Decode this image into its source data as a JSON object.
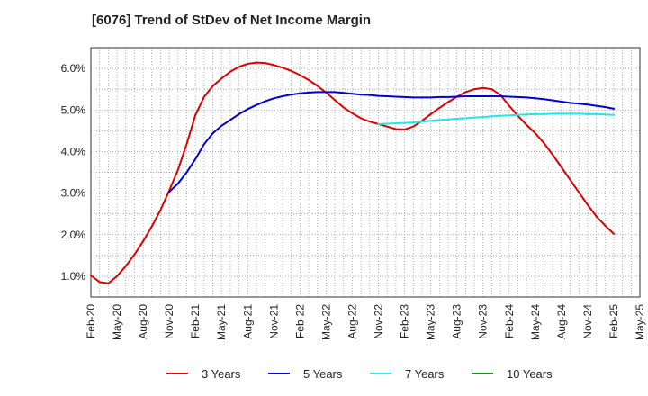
{
  "title": "[6076]  Trend of StDev of Net Income Margin",
  "chart_data": {
    "type": "line",
    "title": "[6076]  Trend of StDev of Net Income Margin",
    "xlabel": "",
    "ylabel": "",
    "x_ticks": [
      "Feb-20",
      "May-20",
      "Aug-20",
      "Nov-20",
      "Feb-21",
      "May-21",
      "Aug-21",
      "Nov-21",
      "Feb-22",
      "May-22",
      "Aug-22",
      "Nov-22",
      "Feb-23",
      "May-23",
      "Aug-23",
      "Nov-23",
      "Feb-24",
      "May-24",
      "Aug-24",
      "Nov-24",
      "Feb-25",
      "May-25"
    ],
    "y_ticks": [
      "1.0%",
      "2.0%",
      "3.0%",
      "4.0%",
      "5.0%",
      "6.0%"
    ],
    "ylim": [
      0.5,
      6.5
    ],
    "grid": true,
    "legend_position": "bottom",
    "series": [
      {
        "name": "3 Years",
        "color": "#dd0000",
        "points": [
          [
            "Feb-20",
            1.02
          ],
          [
            "Mar-20",
            0.86
          ],
          [
            "Apr-20",
            0.83
          ],
          [
            "May-20",
            1.0
          ],
          [
            "Jun-20",
            1.24
          ],
          [
            "Jul-20",
            1.52
          ],
          [
            "Aug-20",
            1.84
          ],
          [
            "Sep-20",
            2.2
          ],
          [
            "Oct-20",
            2.6
          ],
          [
            "Nov-20",
            3.06
          ],
          [
            "Dec-20",
            3.56
          ],
          [
            "Jan-21",
            4.18
          ],
          [
            "Feb-21",
            4.88
          ],
          [
            "Mar-21",
            5.32
          ],
          [
            "Apr-21",
            5.58
          ],
          [
            "May-21",
            5.76
          ],
          [
            "Jun-21",
            5.92
          ],
          [
            "Jul-21",
            6.04
          ],
          [
            "Aug-21",
            6.11
          ],
          [
            "Sep-21",
            6.14
          ],
          [
            "Oct-21",
            6.13
          ],
          [
            "Nov-21",
            6.08
          ],
          [
            "Dec-21",
            6.02
          ],
          [
            "Jan-22",
            5.94
          ],
          [
            "Feb-22",
            5.84
          ],
          [
            "Mar-22",
            5.72
          ],
          [
            "Apr-22",
            5.58
          ],
          [
            "May-22",
            5.42
          ],
          [
            "Jun-22",
            5.24
          ],
          [
            "Jul-22",
            5.06
          ],
          [
            "Aug-22",
            4.92
          ],
          [
            "Sep-22",
            4.8
          ],
          [
            "Oct-22",
            4.72
          ],
          [
            "Nov-22",
            4.66
          ],
          [
            "Dec-22",
            4.6
          ],
          [
            "Jan-23",
            4.54
          ],
          [
            "Feb-23",
            4.53
          ],
          [
            "Mar-23",
            4.6
          ],
          [
            "Apr-23",
            4.74
          ],
          [
            "May-23",
            4.9
          ],
          [
            "Jun-23",
            5.05
          ],
          [
            "Jul-23",
            5.19
          ],
          [
            "Aug-23",
            5.32
          ],
          [
            "Sep-23",
            5.43
          ],
          [
            "Oct-23",
            5.5
          ],
          [
            "Nov-23",
            5.53
          ],
          [
            "Dec-23",
            5.5
          ],
          [
            "Jan-24",
            5.36
          ],
          [
            "Feb-24",
            5.1
          ],
          [
            "Mar-24",
            4.86
          ],
          [
            "Apr-24",
            4.64
          ],
          [
            "May-24",
            4.44
          ],
          [
            "Jun-24",
            4.2
          ],
          [
            "Jul-24",
            3.92
          ],
          [
            "Aug-24",
            3.62
          ],
          [
            "Sep-24",
            3.32
          ],
          [
            "Oct-24",
            3.02
          ],
          [
            "Nov-24",
            2.72
          ],
          [
            "Dec-24",
            2.44
          ],
          [
            "Jan-25",
            2.22
          ],
          [
            "Feb-25",
            2.02
          ]
        ]
      },
      {
        "name": "5 Years",
        "color": "#0000cc",
        "points": [
          [
            "Nov-20",
            3.03
          ],
          [
            "Dec-20",
            3.23
          ],
          [
            "Jan-21",
            3.5
          ],
          [
            "Feb-21",
            3.82
          ],
          [
            "Mar-21",
            4.18
          ],
          [
            "Apr-21",
            4.44
          ],
          [
            "May-21",
            4.62
          ],
          [
            "Jun-21",
            4.76
          ],
          [
            "Jul-21",
            4.9
          ],
          [
            "Aug-21",
            5.02
          ],
          [
            "Sep-21",
            5.12
          ],
          [
            "Oct-21",
            5.21
          ],
          [
            "Nov-21",
            5.28
          ],
          [
            "Dec-21",
            5.33
          ],
          [
            "Jan-22",
            5.37
          ],
          [
            "Feb-22",
            5.4
          ],
          [
            "Mar-22",
            5.42
          ],
          [
            "Apr-22",
            5.43
          ],
          [
            "May-22",
            5.43
          ],
          [
            "Jun-22",
            5.43
          ],
          [
            "Jul-22",
            5.41
          ],
          [
            "Aug-22",
            5.39
          ],
          [
            "Sep-22",
            5.37
          ],
          [
            "Oct-22",
            5.36
          ],
          [
            "Nov-22",
            5.34
          ],
          [
            "Dec-22",
            5.33
          ],
          [
            "Jan-23",
            5.32
          ],
          [
            "Feb-23",
            5.31
          ],
          [
            "Mar-23",
            5.3
          ],
          [
            "Apr-23",
            5.3
          ],
          [
            "May-23",
            5.3
          ],
          [
            "Jun-23",
            5.31
          ],
          [
            "Jul-23",
            5.31
          ],
          [
            "Aug-23",
            5.32
          ],
          [
            "Sep-23",
            5.33
          ],
          [
            "Oct-23",
            5.33
          ],
          [
            "Nov-23",
            5.33
          ],
          [
            "Dec-23",
            5.33
          ],
          [
            "Jan-24",
            5.33
          ],
          [
            "Feb-24",
            5.32
          ],
          [
            "Mar-24",
            5.31
          ],
          [
            "Apr-24",
            5.3
          ],
          [
            "May-24",
            5.28
          ],
          [
            "Jun-24",
            5.26
          ],
          [
            "Jul-24",
            5.23
          ],
          [
            "Aug-24",
            5.2
          ],
          [
            "Sep-24",
            5.17
          ],
          [
            "Oct-24",
            5.15
          ],
          [
            "Nov-24",
            5.13
          ],
          [
            "Dec-24",
            5.1
          ],
          [
            "Jan-25",
            5.07
          ],
          [
            "Feb-25",
            5.03
          ]
        ]
      },
      {
        "name": "7 Years",
        "color": "#22e6e6",
        "points": [
          [
            "Nov-22",
            4.66
          ],
          [
            "Dec-22",
            4.67
          ],
          [
            "Jan-23",
            4.68
          ],
          [
            "Feb-23",
            4.69
          ],
          [
            "Mar-23",
            4.7
          ],
          [
            "Apr-23",
            4.72
          ],
          [
            "May-23",
            4.74
          ],
          [
            "Jun-23",
            4.76
          ],
          [
            "Jul-23",
            4.77
          ],
          [
            "Aug-23",
            4.79
          ],
          [
            "Sep-23",
            4.8
          ],
          [
            "Oct-23",
            4.82
          ],
          [
            "Nov-23",
            4.83
          ],
          [
            "Dec-23",
            4.85
          ],
          [
            "Jan-24",
            4.86
          ],
          [
            "Feb-24",
            4.87
          ],
          [
            "Mar-24",
            4.88
          ],
          [
            "Apr-24",
            4.89
          ],
          [
            "May-24",
            4.9
          ],
          [
            "Jun-24",
            4.9
          ],
          [
            "Jul-24",
            4.91
          ],
          [
            "Aug-24",
            4.91
          ],
          [
            "Sep-24",
            4.91
          ],
          [
            "Oct-24",
            4.91
          ],
          [
            "Nov-24",
            4.9
          ],
          [
            "Dec-24",
            4.9
          ],
          [
            "Jan-25",
            4.89
          ],
          [
            "Feb-25",
            4.88
          ]
        ]
      },
      {
        "name": "10 Years",
        "color": "#228b22",
        "points": []
      }
    ]
  }
}
